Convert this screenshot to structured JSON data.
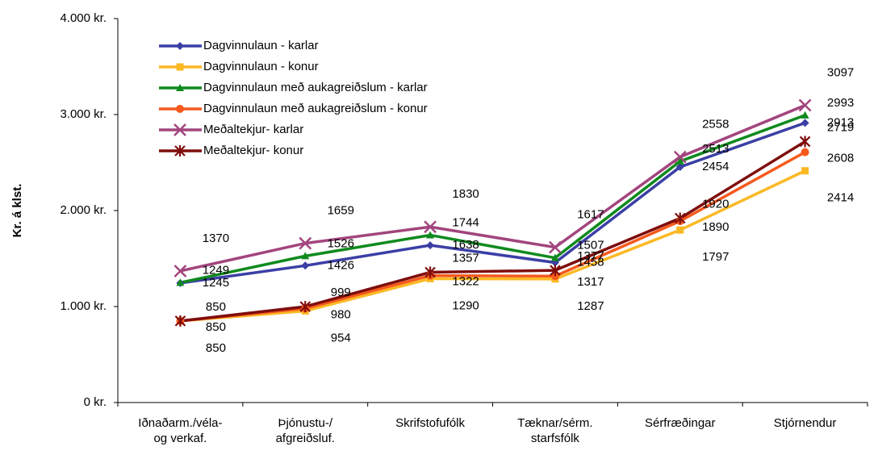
{
  "chart_data": {
    "type": "line",
    "y_label": "Kr. á klst.",
    "categories": [
      "Iðnaðarm./véla-\nog verkaf.",
      "Þjónustu-/\nafgreiðsluf.",
      "Skrifstofufólk",
      "Tæknar/sérm.\nstarfsfólk",
      "Sérfræðingar",
      "Stjórnendur"
    ],
    "series": [
      {
        "name": "Dagvinnulaun - karlar",
        "color": "#3b3fa5",
        "marker": "diamond",
        "values": [
          1245,
          1426,
          1638,
          1458,
          2454,
          2913
        ]
      },
      {
        "name": "Dagvinnulaun - konur",
        "color": "#fbb924",
        "marker": "square",
        "values": [
          850,
          954,
          1290,
          1287,
          1797,
          2414
        ]
      },
      {
        "name": "Dagvinnulaun með aukagreiðslum - karlar",
        "color": "#0f8a1e",
        "marker": "triangle",
        "values": [
          1249,
          1526,
          1744,
          1507,
          2513,
          2993
        ]
      },
      {
        "name": "Dagvinnulaun með aukagreiðslum - konur",
        "color": "#f5591c",
        "marker": "circle",
        "values": [
          850,
          980,
          1322,
          1317,
          1890,
          2608
        ]
      },
      {
        "name": "Meðaltekjur- karlar",
        "color": "#a2457e",
        "marker": "x",
        "values": [
          1370,
          1659,
          1830,
          1617,
          2558,
          3097
        ]
      },
      {
        "name": "Meðaltekjur- konur",
        "color": "#7f0d0d",
        "marker": "star",
        "values": [
          850,
          999,
          1357,
          1377,
          1920,
          2719
        ]
      }
    ],
    "ylim": [
      0,
      4000
    ],
    "yticks": [
      {
        "value": 0,
        "label": "0 kr."
      },
      {
        "value": 1000,
        "label": "1.000 kr."
      },
      {
        "value": 2000,
        "label": "2.000 kr."
      },
      {
        "value": 3000,
        "label": "3.000 kr."
      },
      {
        "value": 4000,
        "label": "4.000 kr."
      }
    ],
    "grid": false,
    "legend": "upper left"
  }
}
